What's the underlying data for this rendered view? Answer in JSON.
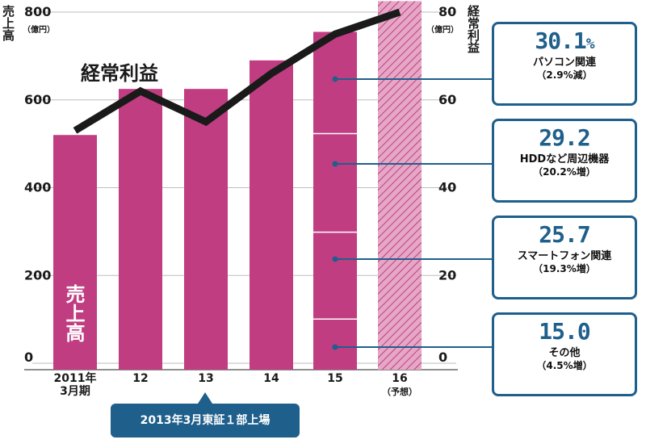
{
  "left_axis": {
    "title": "売上高",
    "unit": "（億円）"
  },
  "right_axis": {
    "title": "経常利益",
    "unit": "（億円）"
  },
  "profit_label": "経常利益",
  "sales_label_in_bar": "売上高",
  "listing_note": "2013年3月東証１部上場",
  "colors": {
    "bar": "#c03d82",
    "forecast_bar": "#e5a7c5",
    "line": "#1a1a1a",
    "callout": "#1f5f8b"
  },
  "breakdown": [
    {
      "value": "30.1",
      "suffix": "%",
      "label": "パソコン関連",
      "change": "（2.9%減）"
    },
    {
      "value": "29.2",
      "suffix": "",
      "label": "HDDなど周辺機器",
      "change": "（20.2%増）"
    },
    {
      "value": "25.7",
      "suffix": "",
      "label": "スマートフォン関連",
      "change": "（19.3%増）"
    },
    {
      "value": "15.0",
      "suffix": "",
      "label": "その他",
      "change": "（4.5%増）"
    }
  ],
  "chart_data": {
    "type": "bar",
    "categories": [
      "2011年\n3月期",
      "12",
      "13",
      "14",
      "15",
      "16\n（予想）"
    ],
    "series": [
      {
        "name": "売上高",
        "type": "bar",
        "axis": "left",
        "values": [
          520,
          625,
          625,
          690,
          755,
          825
        ],
        "forecast_index": 5
      },
      {
        "name": "経常利益",
        "type": "line",
        "axis": "right",
        "values": [
          53,
          62,
          55,
          66,
          75,
          80
        ]
      }
    ],
    "left_ylim": [
      0,
      800
    ],
    "left_ticks": [
      "0",
      "200",
      "400",
      "600",
      "800"
    ],
    "right_ylim": [
      0,
      80
    ],
    "right_ticks": [
      "0",
      "20",
      "40",
      "60",
      "80"
    ],
    "breakdown_segments_bar_index": 4,
    "breakdown_shares": [
      30.1,
      29.2,
      25.7,
      15.0
    ]
  }
}
